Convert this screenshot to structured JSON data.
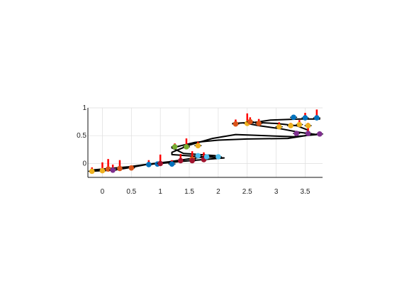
{
  "chart_data": {
    "type": "line",
    "title": "",
    "xlabel": "",
    "ylabel": "",
    "xlim": [
      -0.25,
      3.8
    ],
    "ylim": [
      -0.25,
      1.0
    ],
    "grid": true,
    "legend": "none",
    "x_ticks": [
      "0",
      "0.5",
      "1",
      "1.5",
      "2",
      "2.5",
      "3",
      "3.5"
    ],
    "y_ticks": [
      "0",
      "0.5",
      "1"
    ],
    "colors": {
      "curve": "#000000",
      "stem": "#ff0000",
      "marker_palette": [
        "#0072bd",
        "#d95319",
        "#edb120",
        "#7e2f8e",
        "#77ac30",
        "#4dbeee",
        "#a2142f"
      ]
    },
    "series": [
      {
        "values": [
          {
            "x": -0.22,
            "y": -0.14
          },
          {
            "x": 0.2,
            "y": -0.12
          },
          {
            "x": 0.5,
            "y": -0.07
          },
          {
            "x": 0.75,
            "y": -0.02
          },
          {
            "x": 1.1,
            "y": 0.01
          },
          {
            "x": 1.4,
            "y": 0.04
          },
          {
            "x": 1.75,
            "y": 0.07
          },
          {
            "x": 2.1,
            "y": 0.1
          },
          {
            "x": 1.6,
            "y": 0.13
          },
          {
            "x": 1.2,
            "y": 0.16
          },
          {
            "x": 1.2,
            "y": 0.2
          },
          {
            "x": 1.5,
            "y": 0.33
          },
          {
            "x": 1.9,
            "y": 0.45
          },
          {
            "x": 2.3,
            "y": 0.52
          },
          {
            "x": 3.3,
            "y": 0.48
          },
          {
            "x": 3.7,
            "y": 0.52
          },
          {
            "x": 3.4,
            "y": 0.56
          },
          {
            "x": 3.1,
            "y": 0.62
          },
          {
            "x": 2.7,
            "y": 0.68
          },
          {
            "x": 2.5,
            "y": 0.72
          },
          {
            "x": 2.9,
            "y": 0.78
          },
          {
            "x": 3.4,
            "y": 0.8
          },
          {
            "x": 3.75,
            "y": 0.8
          }
        ]
      },
      {
        "values": [
          {
            "x": -0.2,
            "y": -0.12
          },
          {
            "x": 0.45,
            "y": -0.06
          },
          {
            "x": 0.8,
            "y": -0.01
          },
          {
            "x": 1.15,
            "y": 0.03
          },
          {
            "x": 1.55,
            "y": 0.09
          },
          {
            "x": 1.95,
            "y": 0.14
          },
          {
            "x": 1.4,
            "y": 0.18
          },
          {
            "x": 1.2,
            "y": 0.28
          },
          {
            "x": 1.6,
            "y": 0.38
          },
          {
            "x": 2.0,
            "y": 0.42
          },
          {
            "x": 2.5,
            "y": 0.44
          },
          {
            "x": 3.2,
            "y": 0.45
          },
          {
            "x": 3.5,
            "y": 0.5
          }
        ]
      },
      {
        "values": [
          {
            "x": 2.25,
            "y": 0.72
          },
          {
            "x": 2.6,
            "y": 0.74
          },
          {
            "x": 3.0,
            "y": 0.72
          },
          {
            "x": 3.35,
            "y": 0.68
          },
          {
            "x": 3.55,
            "y": 0.6
          }
        ]
      }
    ],
    "points": [
      {
        "x": -0.18,
        "y": -0.14,
        "h": 0.07,
        "c": 2
      },
      {
        "x": 0.0,
        "y": -0.13,
        "h": 0.15,
        "c": 2
      },
      {
        "x": 0.1,
        "y": -0.1,
        "h": 0.18,
        "c": 1
      },
      {
        "x": 0.18,
        "y": -0.12,
        "h": 0.1,
        "c": 3
      },
      {
        "x": 0.3,
        "y": -0.09,
        "h": 0.15,
        "c": 1
      },
      {
        "x": 0.5,
        "y": -0.08,
        "h": 0.0,
        "c": 1
      },
      {
        "x": 0.8,
        "y": -0.02,
        "h": 0.08,
        "c": 0
      },
      {
        "x": 0.95,
        "y": -0.01,
        "h": 0.0,
        "c": 0
      },
      {
        "x": 1.0,
        "y": 0.0,
        "h": 0.16,
        "c": 6
      },
      {
        "x": 1.2,
        "y": -0.01,
        "h": 0.07,
        "c": 0
      },
      {
        "x": 1.35,
        "y": 0.05,
        "h": 0.12,
        "c": 6
      },
      {
        "x": 1.55,
        "y": 0.08,
        "h": 0.14,
        "c": 1
      },
      {
        "x": 1.55,
        "y": 0.05,
        "h": 0.0,
        "c": 6
      },
      {
        "x": 1.75,
        "y": 0.07,
        "h": 0.13,
        "c": 6
      },
      {
        "x": 1.65,
        "y": 0.14,
        "h": 0.0,
        "c": 5
      },
      {
        "x": 1.8,
        "y": 0.12,
        "h": 0.0,
        "c": 5
      },
      {
        "x": 2.0,
        "y": 0.12,
        "h": 0.0,
        "c": 5
      },
      {
        "x": 1.25,
        "y": 0.3,
        "h": 0.06,
        "c": 4
      },
      {
        "x": 1.45,
        "y": 0.3,
        "h": 0.15,
        "c": 4
      },
      {
        "x": 1.65,
        "y": 0.32,
        "h": 0.07,
        "c": 2
      },
      {
        "x": 2.3,
        "y": 0.71,
        "h": 0.08,
        "c": 1
      },
      {
        "x": 2.5,
        "y": 0.72,
        "h": 0.18,
        "c": 2
      },
      {
        "x": 2.55,
        "y": 0.75,
        "h": 0.08,
        "c": 1
      },
      {
        "x": 2.7,
        "y": 0.72,
        "h": 0.08,
        "c": 1
      },
      {
        "x": 3.05,
        "y": 0.66,
        "h": 0.08,
        "c": 2
      },
      {
        "x": 3.25,
        "y": 0.68,
        "h": 0.05,
        "c": 2
      },
      {
        "x": 3.4,
        "y": 0.7,
        "h": 0.08,
        "c": 2
      },
      {
        "x": 3.55,
        "y": 0.68,
        "h": 0.05,
        "c": 2
      },
      {
        "x": 3.3,
        "y": 0.83,
        "h": 0.0,
        "c": 0
      },
      {
        "x": 3.5,
        "y": 0.82,
        "h": 0.09,
        "c": 0
      },
      {
        "x": 3.7,
        "y": 0.82,
        "h": 0.15,
        "c": 0
      },
      {
        "x": 3.35,
        "y": 0.54,
        "h": 0.0,
        "c": 3
      },
      {
        "x": 3.55,
        "y": 0.54,
        "h": 0.12,
        "c": 3
      },
      {
        "x": 3.75,
        "y": 0.53,
        "h": 0.0,
        "c": 3
      }
    ]
  }
}
